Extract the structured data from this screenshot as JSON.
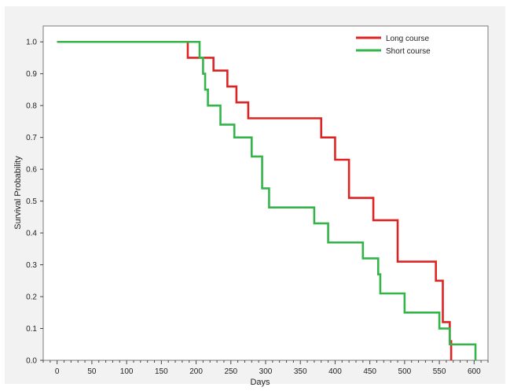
{
  "chart_data": {
    "type": "line",
    "step": true,
    "xlabel": "Days",
    "ylabel": "Survival Probability",
    "xlim": [
      -20,
      620
    ],
    "ylim": [
      0.0,
      1.05
    ],
    "xticks": [
      0,
      50,
      100,
      150,
      200,
      250,
      300,
      350,
      400,
      450,
      500,
      550,
      600
    ],
    "yticks": [
      0.0,
      0.1,
      0.2,
      0.3,
      0.4,
      0.5,
      0.6,
      0.7,
      0.8,
      0.9,
      1.0
    ],
    "ytick_labels": [
      "0.0",
      "0.1",
      "0.2",
      "0.3",
      "0.4",
      "0.5",
      "0.6",
      "0.7",
      "0.8",
      "0.9",
      "1.0"
    ],
    "grid": false,
    "legend_position": "top-right",
    "series": [
      {
        "name": "Long course",
        "color": "#dd2424",
        "x": [
          0,
          188,
          198,
          225,
          245,
          258,
          275,
          380,
          400,
          420,
          455,
          490,
          545,
          555,
          565,
          567
        ],
        "y": [
          1.0,
          0.95,
          0.95,
          0.91,
          0.86,
          0.81,
          0.76,
          0.7,
          0.63,
          0.51,
          0.44,
          0.31,
          0.25,
          0.12,
          0.06,
          0.0
        ]
      },
      {
        "name": "Short course",
        "color": "#33b54a",
        "x": [
          0,
          205,
          210,
          213,
          217,
          235,
          255,
          280,
          295,
          305,
          370,
          380,
          390,
          410,
          440,
          462,
          465,
          478,
          500,
          540,
          550,
          560,
          565,
          602
        ],
        "y": [
          1.0,
          0.95,
          0.9,
          0.85,
          0.8,
          0.74,
          0.7,
          0.64,
          0.54,
          0.48,
          0.43,
          0.43,
          0.37,
          0.37,
          0.32,
          0.27,
          0.21,
          0.21,
          0.15,
          0.15,
          0.1,
          0.1,
          0.05,
          0.0
        ]
      }
    ]
  }
}
